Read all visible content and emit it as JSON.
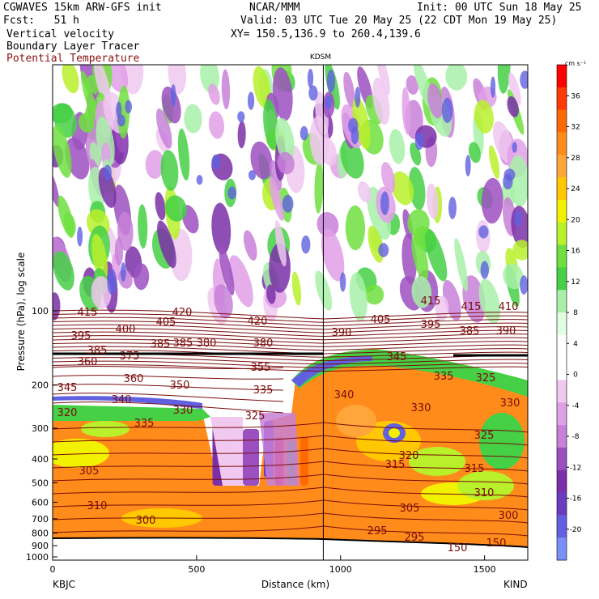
{
  "header": {
    "model": "CGWAVES 15km ARW-GFS init",
    "org": "NCAR/MMM",
    "init": "Init: 00 UTC Sun 18 May 25",
    "fcst": "Fcst:   51 h",
    "valid": "Valid: 03 UTC Tue 20 May 25 (22 CDT Mon 19 May 25)",
    "field1": "Vertical velocity",
    "xy": "XY= 150.5,136.9 to 260.4,139.6",
    "field2": "Boundary Layer Tracer",
    "field3": "Potential Temperature"
  },
  "colors": {
    "theta_contour": "#7a0c0c",
    "boundary_tracer": "#8b1010"
  },
  "chart_data": {
    "type": "heatmap",
    "xlabel": "Distance (km)",
    "ylabel": "Pressure (hPa), log scale",
    "xlim": [
      0,
      1650
    ],
    "ylim": [
      1050,
      100
    ],
    "x_ticks": [
      "0",
      "500",
      "1000",
      "1500"
    ],
    "y_ticks": [
      "100",
      "200",
      "300",
      "400",
      "500",
      "600",
      "700",
      "800",
      "900",
      "1000"
    ],
    "left_station": "KBJC",
    "right_station": "KIND",
    "marker_station": "KDSM",
    "marker_x": 940,
    "colorbar": {
      "units": "cm s⁻¹",
      "labels": [
        "36",
        "32",
        "28",
        "24",
        "20",
        "16",
        "12",
        "8",
        "4",
        "0",
        "-4",
        "-8",
        "-12",
        "-16",
        "-20"
      ],
      "colors": [
        "#ff0000",
        "#ff3a00",
        "#ff6a00",
        "#ff8c1a",
        "#ffa53a",
        "#ffc800",
        "#f2f200",
        "#b8f02a",
        "#6fe040",
        "#45d045",
        "#a8f0a8",
        "#e0ffe0",
        "#ffffff",
        "#ffffff",
        "#f0c8f0",
        "#e0a0e8",
        "#c880d8",
        "#9c50c0",
        "#7a30a8",
        "#6a3cc0",
        "#6060e0",
        "#7a90f8"
      ]
    },
    "theta_labels": [
      "415",
      "420",
      "415",
      "415",
      "410",
      "405",
      "420",
      "405",
      "395",
      "400",
      "395",
      "390",
      "385",
      "385",
      "390",
      "385",
      "380",
      "380",
      "375",
      "345",
      "360",
      "360",
      "355",
      "350",
      "345",
      "335",
      "340",
      "340",
      "335",
      "325",
      "330",
      "330",
      "320",
      "335",
      "330",
      "325",
      "325",
      "320",
      "315",
      "315",
      "305",
      "310",
      "310",
      "305",
      "300",
      "300",
      "295",
      "295",
      "150",
      "150",
      "385"
    ]
  }
}
